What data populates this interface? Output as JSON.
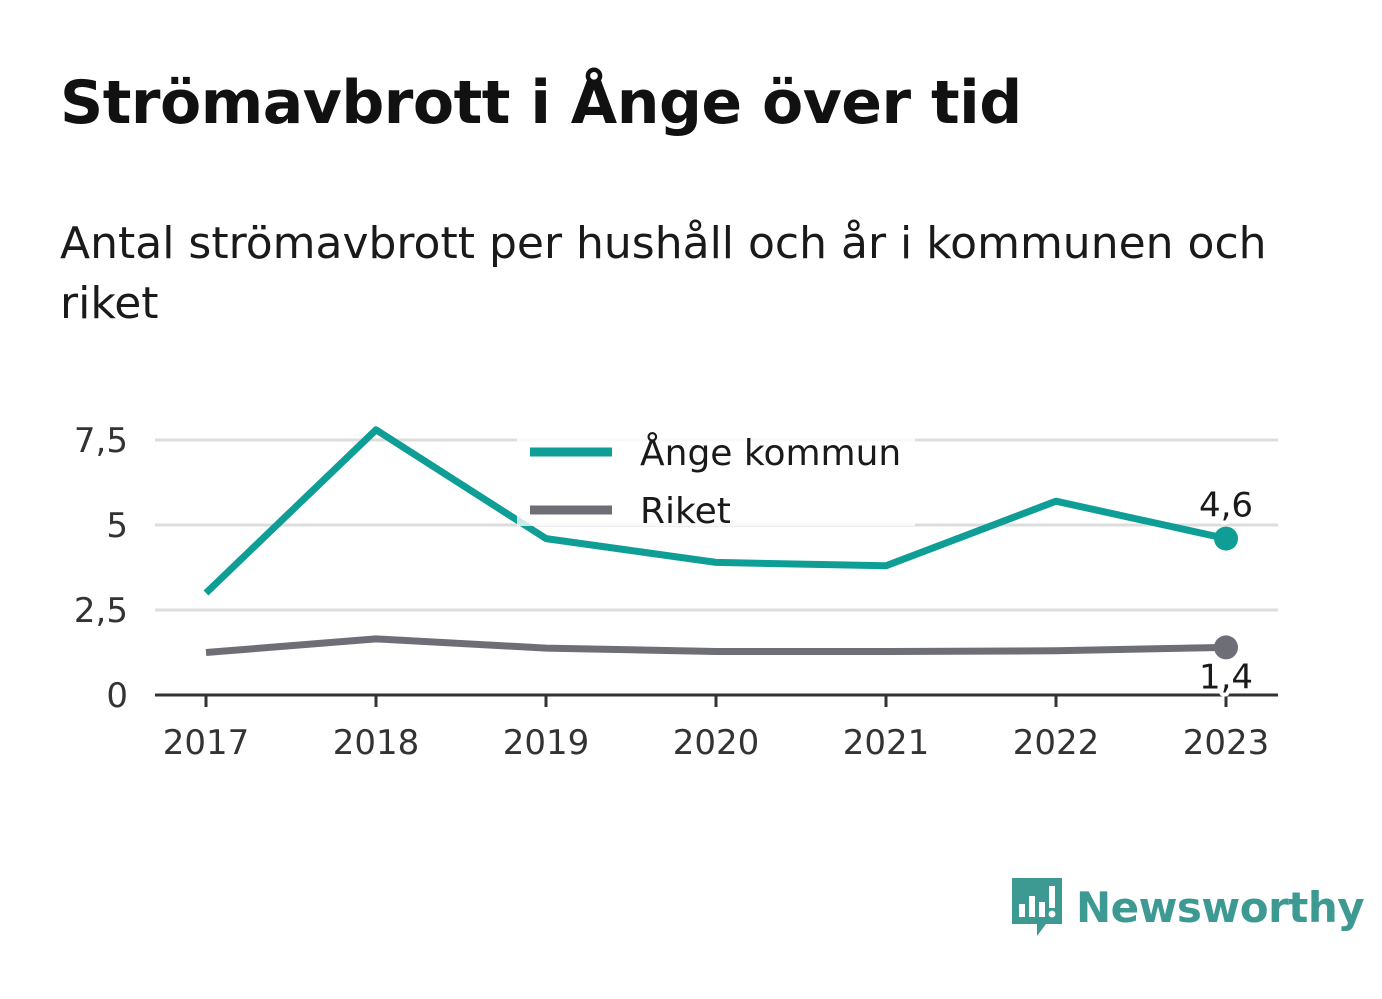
{
  "title": "Strömavbrott i Ånge över tid",
  "subtitle": "Antal strömavbrott per hushåll och år i kommunen och riket",
  "brand": {
    "name": "Newsworthy",
    "icon": "bar-chart-speech-bubble-icon",
    "color": "#3d9a93"
  },
  "chart_data": {
    "type": "line",
    "x": [
      "2017",
      "2018",
      "2019",
      "2020",
      "2021",
      "2022",
      "2023"
    ],
    "ylim": [
      0,
      7.5
    ],
    "yticks": [
      "0",
      "2,5",
      "5",
      "7,5"
    ],
    "grid": true,
    "legend_position": "top-center",
    "series": [
      {
        "name": "Ånge kommun",
        "color": "#0f9e96",
        "values": [
          3.0,
          7.8,
          4.6,
          3.9,
          3.8,
          5.7,
          4.6
        ],
        "end_label": "4,6"
      },
      {
        "name": "Riket",
        "color": "#6e6e76",
        "values": [
          1.25,
          1.65,
          1.38,
          1.28,
          1.28,
          1.3,
          1.4
        ],
        "end_label": "1,4"
      }
    ]
  }
}
